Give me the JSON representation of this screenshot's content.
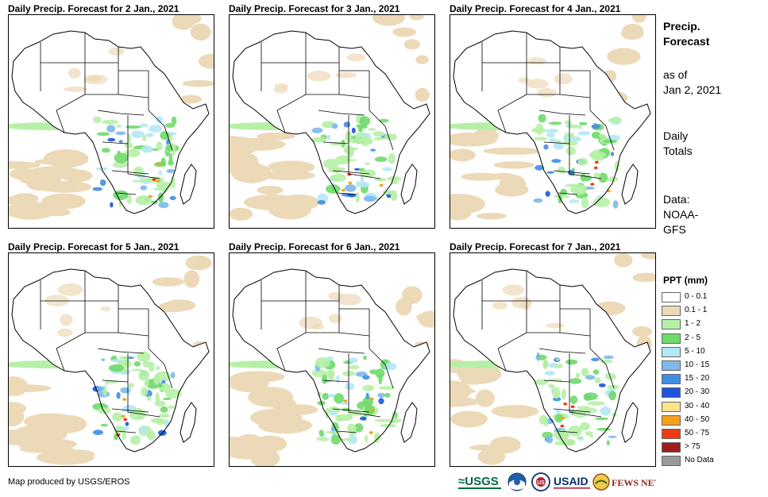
{
  "panels": [
    {
      "title": "Daily Precip. Forecast for 2 Jan., 2021",
      "day": 2
    },
    {
      "title": "Daily Precip. Forecast for 3 Jan., 2021",
      "day": 3
    },
    {
      "title": "Daily Precip. Forecast for 4 Jan., 2021",
      "day": 4
    },
    {
      "title": "Daily Precip. Forecast for 5 Jan., 2021",
      "day": 5
    },
    {
      "title": "Daily Precip. Forecast for 6 Jan., 2021",
      "day": 6
    },
    {
      "title": "Daily Precip. Forecast for 7 Jan., 2021",
      "day": 7
    }
  ],
  "side": {
    "title_line1": "Precip.",
    "title_line2": "Forecast",
    "asof_line1": "as of",
    "asof_line2": "Jan 2, 2021",
    "totals_line1": "Daily",
    "totals_line2": "Totals",
    "data_line1": "Data:",
    "data_line2": "NOAA-",
    "data_line3": "GFS"
  },
  "legend": {
    "title": "PPT (mm)",
    "items": [
      {
        "label": "0 - 0.1",
        "color": "#ffffff"
      },
      {
        "label": "0.1 - 1",
        "color": "#ecd9b8"
      },
      {
        "label": "1 - 2",
        "color": "#b6f0a6"
      },
      {
        "label": "2 - 5",
        "color": "#6fd96a"
      },
      {
        "label": "5 - 10",
        "color": "#b4e8f5"
      },
      {
        "label": "10 - 15",
        "color": "#7cb8ec"
      },
      {
        "label": "15 - 20",
        "color": "#3f8ee6"
      },
      {
        "label": "20 - 30",
        "color": "#1b57d8"
      },
      {
        "label": "30 - 40",
        "color": "#fbe38a"
      },
      {
        "label": "40 - 50",
        "color": "#f5a21c"
      },
      {
        "label": "50 - 75",
        "color": "#ee3b17"
      },
      {
        "label": "> 75",
        "color": "#9e1c1c"
      },
      {
        "label": "No Data",
        "color": "#9a9a9a"
      }
    ]
  },
  "footer": {
    "credit": "Map produced by USGS/EROS",
    "logos": [
      {
        "name": "usgs-logo",
        "text": "≈USGS"
      },
      {
        "name": "noaa-logo",
        "text": "NOAA"
      },
      {
        "name": "usgs-seal-logo",
        "text": "US"
      },
      {
        "name": "usaid-logo",
        "text": "USAID"
      },
      {
        "name": "fewsnet-logo",
        "text": "FEWS NET"
      }
    ]
  }
}
